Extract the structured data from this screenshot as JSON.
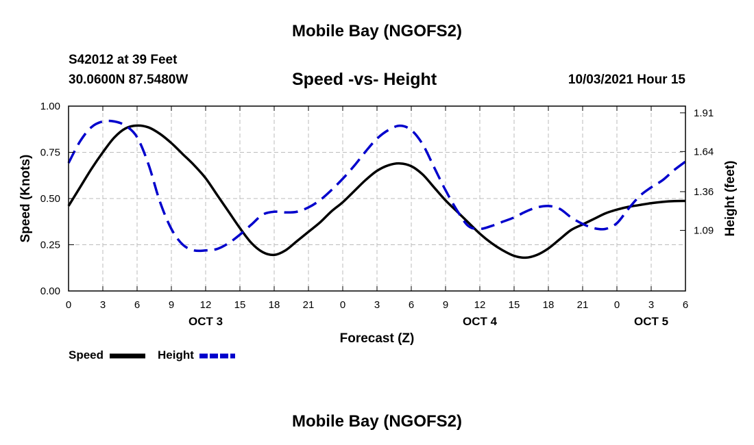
{
  "header": {
    "title": "Mobile Bay (NGOFS2)",
    "station": "S42012 at 39 Feet",
    "coordinates": "30.0600N  87.5480W",
    "plot_title": "Speed -vs- Height",
    "datetime": "10/03/2021 Hour 15"
  },
  "footer": {
    "title": "Mobile Bay (NGOFS2)"
  },
  "legend": {
    "speed_label": "Speed",
    "height_label": "Height"
  },
  "chart_data": {
    "type": "line",
    "xlabel": "Forecast (Z)",
    "ylabel_left": "Speed (Knots)",
    "ylabel_right": "Height (feet)",
    "x_tick_labels": [
      "0",
      "3",
      "6",
      "9",
      "12",
      "15",
      "18",
      "21",
      "0",
      "3",
      "6",
      "9",
      "12",
      "15",
      "18",
      "21",
      "0",
      "3",
      "6"
    ],
    "day_labels": [
      {
        "label": "OCT 3",
        "at_hour": 12
      },
      {
        "label": "OCT 4",
        "at_hour": 36
      },
      {
        "label": "OCT 5",
        "at_hour": 51
      }
    ],
    "xlim_hours": [
      0,
      54
    ],
    "ylim_left": [
      0,
      1.0
    ],
    "y_left_ticks": [
      "0.00",
      "0.25",
      "0.50",
      "0.75",
      "1.00"
    ],
    "ylim_right": [
      0.667,
      1.957
    ],
    "y_right_ticks": [
      "1.09",
      "1.36",
      "1.64",
      "1.91"
    ],
    "grid": true,
    "colors": {
      "speed": "#000000",
      "height": "#0000cc",
      "grid": "#bbbbbb"
    },
    "series": [
      {
        "name": "Speed",
        "axis": "left",
        "style": "solid",
        "x": [
          0,
          1,
          2,
          3,
          4,
          5,
          6,
          7,
          8,
          9,
          10,
          11,
          12,
          13,
          14,
          15,
          16,
          17,
          18,
          19,
          20,
          21,
          22,
          23,
          24,
          25,
          26,
          27,
          28,
          29,
          30,
          31,
          32,
          33,
          34,
          35,
          36,
          37,
          38,
          39,
          40,
          41,
          42,
          43,
          44,
          45,
          46,
          47,
          48,
          49,
          50,
          51,
          52,
          53,
          54
        ],
        "values": [
          0.46,
          0.56,
          0.66,
          0.75,
          0.83,
          0.88,
          0.895,
          0.885,
          0.85,
          0.8,
          0.74,
          0.68,
          0.61,
          0.52,
          0.43,
          0.34,
          0.26,
          0.21,
          0.195,
          0.22,
          0.27,
          0.32,
          0.37,
          0.43,
          0.48,
          0.54,
          0.6,
          0.65,
          0.68,
          0.69,
          0.675,
          0.63,
          0.56,
          0.49,
          0.43,
          0.37,
          0.31,
          0.26,
          0.22,
          0.19,
          0.18,
          0.195,
          0.23,
          0.28,
          0.33,
          0.36,
          0.39,
          0.42,
          0.44,
          0.455,
          0.465,
          0.475,
          0.482,
          0.486,
          0.487
        ]
      },
      {
        "name": "Height",
        "axis": "right",
        "style": "dashed",
        "x": [
          0,
          1,
          2,
          3,
          4,
          5,
          6,
          7,
          8,
          9,
          10,
          11,
          12,
          13,
          14,
          15,
          16,
          17,
          18,
          19,
          20,
          21,
          22,
          23,
          24,
          25,
          26,
          27,
          28,
          29,
          30,
          31,
          32,
          33,
          34,
          35,
          36,
          37,
          38,
          39,
          40,
          41,
          42,
          43,
          44,
          45,
          46,
          47,
          48,
          49,
          50,
          51,
          52,
          53,
          54
        ],
        "values": [
          1.56,
          1.71,
          1.81,
          1.85,
          1.85,
          1.82,
          1.74,
          1.55,
          1.29,
          1.1,
          0.99,
          0.95,
          0.95,
          0.96,
          1.0,
          1.06,
          1.13,
          1.2,
          1.22,
          1.215,
          1.22,
          1.25,
          1.3,
          1.37,
          1.45,
          1.54,
          1.64,
          1.73,
          1.79,
          1.82,
          1.79,
          1.69,
          1.53,
          1.37,
          1.23,
          1.12,
          1.1,
          1.12,
          1.15,
          1.18,
          1.22,
          1.25,
          1.26,
          1.24,
          1.18,
          1.135,
          1.105,
          1.1,
          1.14,
          1.24,
          1.33,
          1.39,
          1.44,
          1.51,
          1.57
        ]
      }
    ]
  }
}
